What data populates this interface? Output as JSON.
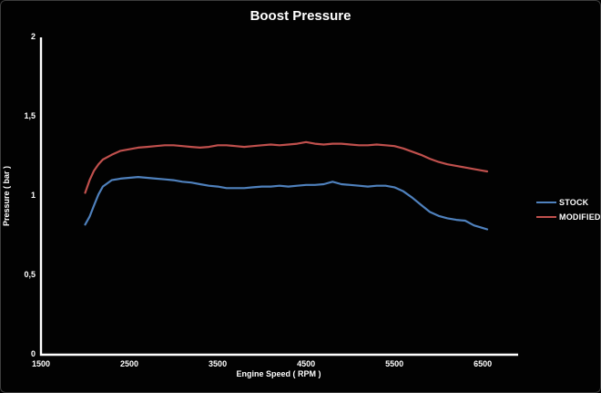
{
  "chart_data": {
    "type": "line",
    "title": "Boost Pressure",
    "xlabel": "Engine Speed ( RPM )",
    "ylabel": "Pressure ( bar )",
    "xlim": [
      1500,
      6900
    ],
    "ylim": [
      0,
      2
    ],
    "grid": false,
    "legend_position": "right",
    "background_color": "#020202",
    "axis_color": "#ffffff",
    "text_color": "#ffffff",
    "x_ticks": [
      {
        "value": 1500,
        "label": "1500"
      },
      {
        "value": 2500,
        "label": "2500"
      },
      {
        "value": 3500,
        "label": "3500"
      },
      {
        "value": 4500,
        "label": "4500"
      },
      {
        "value": 5500,
        "label": "5500"
      },
      {
        "value": 6500,
        "label": "6500"
      }
    ],
    "y_ticks": [
      {
        "value": 0,
        "label": "0"
      },
      {
        "value": 0.5,
        "label": "0,5"
      },
      {
        "value": 1,
        "label": "1"
      },
      {
        "value": 1.5,
        "label": "1,5"
      },
      {
        "value": 2,
        "label": "2"
      }
    ],
    "x": [
      2000,
      2050,
      2100,
      2150,
      2200,
      2300,
      2400,
      2500,
      2600,
      2700,
      2800,
      2900,
      3000,
      3100,
      3200,
      3300,
      3400,
      3500,
      3600,
      3700,
      3800,
      3900,
      4000,
      4100,
      4200,
      4300,
      4400,
      4500,
      4600,
      4700,
      4800,
      4900,
      5000,
      5100,
      5200,
      5300,
      5400,
      5500,
      5600,
      5700,
      5800,
      5900,
      6000,
      6100,
      6200,
      6300,
      6400,
      6500,
      6550
    ],
    "series": [
      {
        "name": "STOCK",
        "color": "#4f81bd",
        "values": [
          0.82,
          0.87,
          0.94,
          1.01,
          1.06,
          1.1,
          1.11,
          1.115,
          1.12,
          1.115,
          1.11,
          1.105,
          1.1,
          1.09,
          1.085,
          1.075,
          1.065,
          1.06,
          1.05,
          1.05,
          1.05,
          1.055,
          1.06,
          1.06,
          1.065,
          1.06,
          1.065,
          1.07,
          1.07,
          1.075,
          1.09,
          1.075,
          1.07,
          1.065,
          1.06,
          1.065,
          1.065,
          1.055,
          1.03,
          0.99,
          0.945,
          0.9,
          0.875,
          0.86,
          0.85,
          0.845,
          0.815,
          0.798,
          0.79
        ]
      },
      {
        "name": "MODIFIED",
        "color": "#c0504d",
        "values": [
          1.02,
          1.1,
          1.16,
          1.2,
          1.23,
          1.26,
          1.285,
          1.295,
          1.305,
          1.31,
          1.315,
          1.32,
          1.32,
          1.315,
          1.31,
          1.305,
          1.31,
          1.32,
          1.32,
          1.315,
          1.31,
          1.315,
          1.32,
          1.325,
          1.32,
          1.325,
          1.33,
          1.34,
          1.33,
          1.325,
          1.33,
          1.33,
          1.325,
          1.32,
          1.32,
          1.325,
          1.32,
          1.315,
          1.3,
          1.28,
          1.26,
          1.235,
          1.215,
          1.2,
          1.19,
          1.18,
          1.17,
          1.16,
          1.155
        ]
      }
    ]
  }
}
